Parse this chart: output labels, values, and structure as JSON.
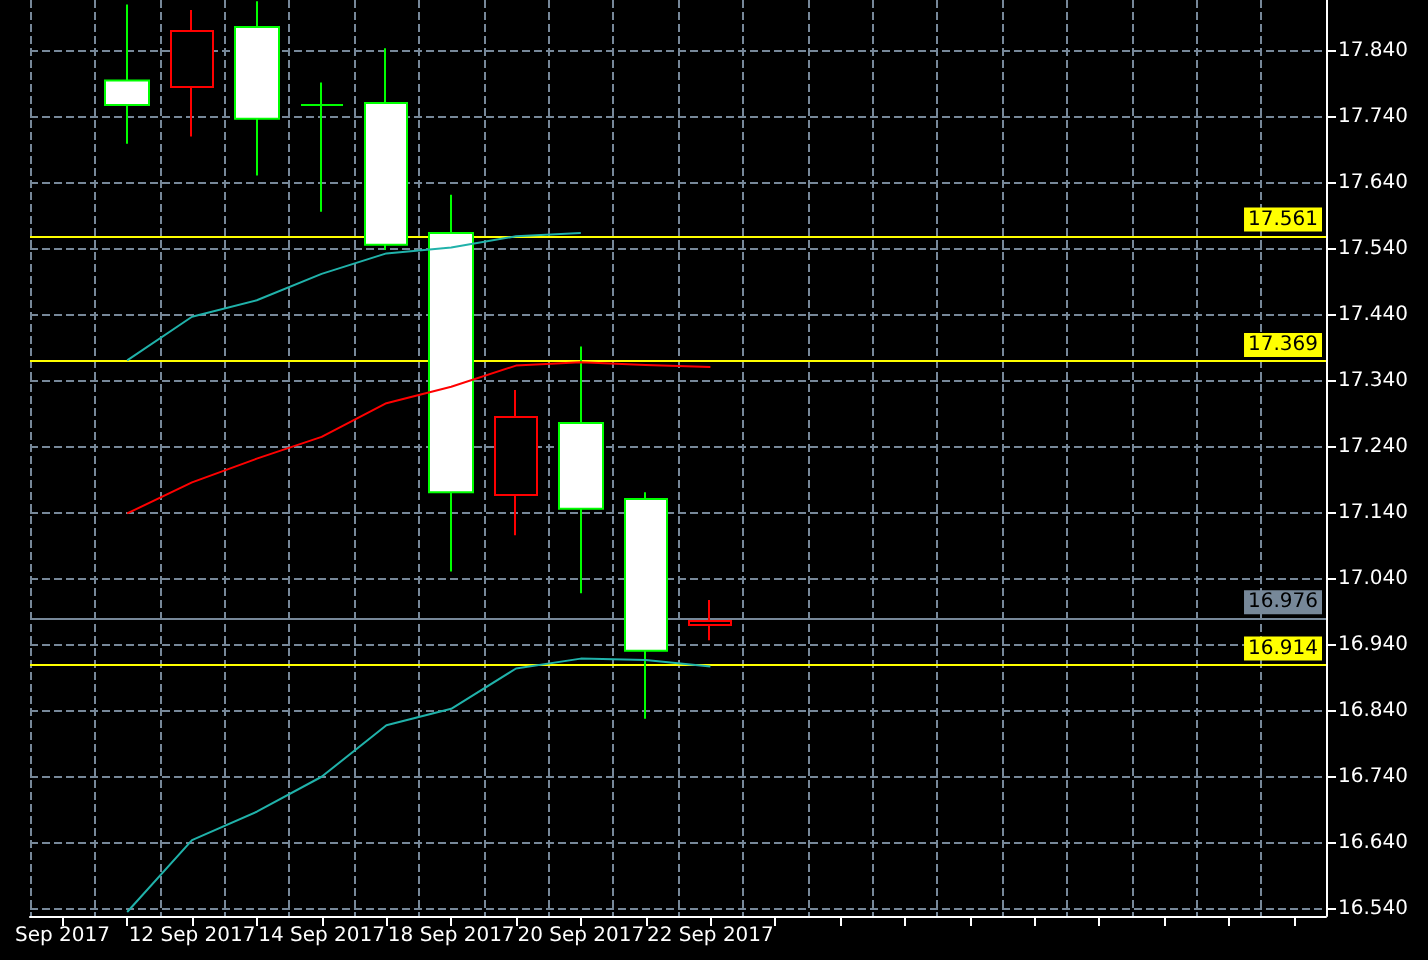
{
  "chart_data": {
    "type": "candlestick",
    "categories": [
      "Sep 2017",
      null,
      "12 Sep 2017",
      null,
      "14 Sep 2017",
      null,
      "18 Sep 2017",
      null,
      "20 Sep 2017",
      null,
      "22 Sep 2017",
      null,
      null,
      null,
      null,
      null,
      null,
      null,
      null,
      null
    ],
    "ohlc": [
      null,
      [
        17.795,
        17.91,
        17.699,
        17.758
      ],
      [
        17.785,
        17.902,
        17.71,
        17.87
      ],
      [
        17.876,
        17.915,
        17.651,
        17.737
      ],
      [
        17.758,
        17.792,
        17.596,
        17.758
      ],
      [
        17.761,
        17.844,
        17.538,
        17.546
      ],
      [
        17.564,
        17.622,
        17.051,
        17.171
      ],
      [
        17.167,
        17.326,
        17.106,
        17.285
      ],
      [
        17.276,
        17.392,
        17.018,
        17.146
      ],
      [
        17.161,
        17.171,
        16.828,
        16.931
      ],
      [
        16.97,
        17.008,
        16.947,
        16.976
      ],
      null,
      null,
      null,
      null,
      null,
      null,
      null,
      null,
      null
    ],
    "colors": [
      null,
      "#00ff00",
      "#ff0000",
      "#00ff00",
      "#00ff00",
      "#00ff00",
      "#00ff00",
      "#ff0000",
      "#00ff00",
      "#00ff00",
      "#ff0000",
      null,
      null,
      null,
      null,
      null,
      null,
      null,
      null,
      null
    ],
    "series": [
      {
        "type": "line",
        "color": "#20b2aa",
        "values": [
          null,
          17.371,
          17.437,
          17.462,
          17.502,
          17.533,
          17.542,
          17.559,
          17.564,
          null,
          null,
          null,
          null,
          null,
          null,
          null,
          null,
          null,
          null,
          null
        ]
      },
      {
        "type": "line",
        "color": "#ff0000",
        "values": [
          null,
          17.139,
          17.186,
          17.222,
          17.255,
          17.306,
          17.331,
          17.363,
          17.368,
          17.364,
          17.361,
          null,
          null,
          null,
          null,
          null,
          null,
          null,
          null,
          null
        ]
      },
      {
        "type": "line",
        "color": "#20b2aa",
        "values": [
          null,
          16.535,
          16.644,
          16.687,
          16.74,
          16.818,
          16.843,
          16.904,
          16.919,
          16.917,
          16.907,
          null,
          null,
          null,
          null,
          null,
          null,
          null,
          null,
          null
        ]
      }
    ],
    "marker": "none",
    "ylim": [
      16.529,
      17.917
    ],
    "yticks": [
      {
        "value": 16.54,
        "label": "16.540"
      },
      {
        "value": 16.64,
        "label": "16.640"
      },
      {
        "value": 16.74,
        "label": "16.740"
      },
      {
        "value": 16.84,
        "label": "16.840"
      },
      {
        "value": 16.94,
        "label": "16.940"
      },
      {
        "value": 17.04,
        "label": "17.040"
      },
      {
        "value": 17.14,
        "label": "17.140"
      },
      {
        "value": 17.24,
        "label": "17.240"
      },
      {
        "value": 17.34,
        "label": "17.340"
      },
      {
        "value": 17.44,
        "label": "17.440"
      },
      {
        "value": 17.54,
        "label": "17.540"
      },
      {
        "value": 17.64,
        "label": "17.640"
      },
      {
        "value": 17.74,
        "label": "17.740"
      },
      {
        "value": 17.84,
        "label": "17.840"
      }
    ],
    "ref_lines": [
      {
        "axis": "y",
        "value": 17.561,
        "label": "17.561",
        "color": "#ffff00"
      },
      {
        "axis": "y",
        "value": 17.369,
        "label": "17.369",
        "color": "#ffff00"
      },
      {
        "axis": "y",
        "value": 16.976,
        "label": "16.976",
        "color": "#778899"
      },
      {
        "axis": "y",
        "value": 16.914,
        "label": "16.914",
        "color": "#ffff00"
      }
    ],
    "grid": true
  }
}
